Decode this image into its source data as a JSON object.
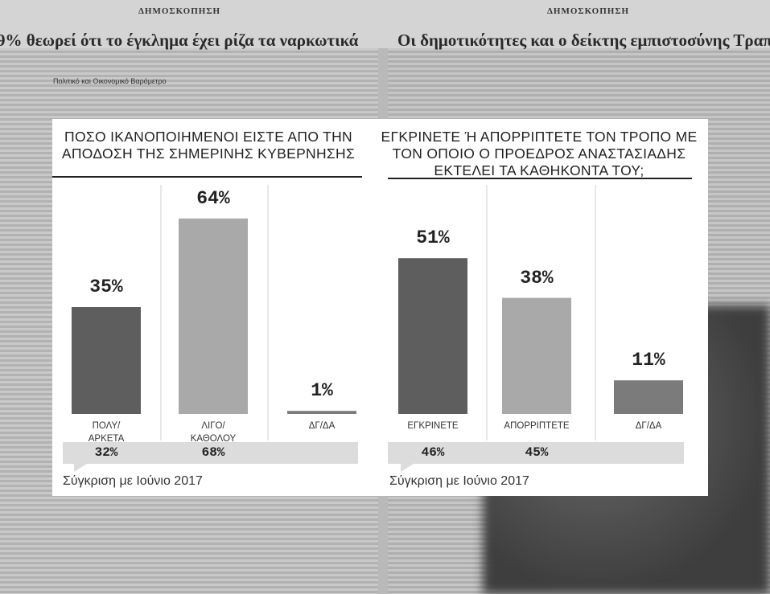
{
  "background": {
    "left_section": "ΔΗΜΟΣΚΟΠΗΣΗ",
    "right_section": "ΔΗΜΟΣΚΟΠΗΣΗ",
    "left_headline": "9% θεωρεί ότι το έγκλημα έχει ρίζα τα ναρκωτικά",
    "right_headline": "Οι δημοτικότητες και ο δείκτης εμπιστοσύνης Τραπεζών",
    "left_chart_title": "Πολιτικό και Οικονομικό Βαρόμετρο"
  },
  "chart_data": [
    {
      "type": "bar",
      "title": "ΠΟΣΟ ΙΚΑΝΟΠΟΙΗΜΕΝΟΙ ΕΙΣΤΕ ΑΠΟ ΤΗΝ ΑΠΟΔΟΣΗ ΤΗΣ ΣΗΜΕΡΙΝΗΣ ΚΥΒΕΡΝΗΣΗΣ",
      "categories": [
        "ΠΟΛΥ/\nΑΡΚΕΤΑ",
        "ΛΙΓΟ/\nΚΑΘΟΛΟΥ",
        "ΔΓ/ΔΑ"
      ],
      "values": [
        35,
        64,
        1
      ],
      "value_labels": [
        "35%",
        "64%",
        "1%"
      ],
      "colors": [
        "#5e5e5e",
        "#a9a9a9",
        "#7b7b7b"
      ],
      "comparison": {
        "label": "Σύγκριση με Ιούνιο 2017",
        "values": [
          32,
          68,
          null
        ],
        "value_labels": [
          "32%",
          "68%",
          null
        ]
      }
    },
    {
      "type": "bar",
      "title": "ΕΓΚΡΙΝΕΤΕ Ή ΑΠΟΡΡΙΠΤΕΤΕ ΤΟΝ ΤΡΟΠΟ ΜΕ ΤΟΝ ΟΠΟΙΟ Ο ΠΡΟΕΔΡΟΣ ΑΝΑΣΤΑΣΙΑΔΗΣ ΕΚΤΕΛΕΙ ΤΑ ΚΑΘΗΚΟΝΤΑ ΤΟΥ;",
      "categories": [
        "ΕΓΚΡΙΝΕΤΕ",
        "ΑΠΟΡΡΙΠΤΕΤΕ",
        "ΔΓ/ΔΑ"
      ],
      "values": [
        51,
        38,
        11
      ],
      "value_labels": [
        "51%",
        "38%",
        "11%"
      ],
      "colors": [
        "#5e5e5e",
        "#a9a9a9",
        "#7b7b7b"
      ],
      "comparison": {
        "label": "Σύγκριση με Ιούνιο 2017",
        "values": [
          46,
          45,
          null
        ],
        "value_labels": [
          "46%",
          "45%",
          null
        ]
      }
    }
  ]
}
